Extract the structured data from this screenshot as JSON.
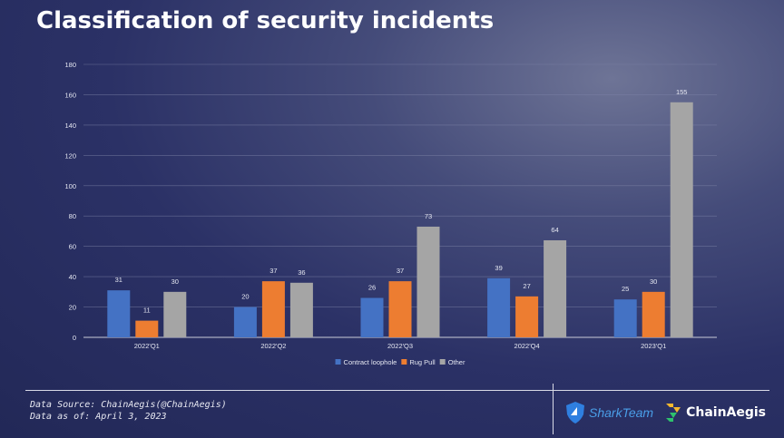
{
  "title": "Classification of security incidents",
  "source": {
    "line1": "Data Source: ChainAegis(@ChainAegis)",
    "line2": "Data as of: April 3, 2023"
  },
  "logos": {
    "shark": "SharkTeam",
    "chain": "ChainAegis"
  },
  "chart_data": {
    "type": "bar",
    "title": "Classification of security incidents",
    "categories": [
      "2022'Q1",
      "2022'Q2",
      "2022'Q3",
      "2022'Q4",
      "2023'Q1"
    ],
    "series": [
      {
        "name": "Contract loophole",
        "color": "#4472c4",
        "values": [
          31,
          20,
          26,
          39,
          25
        ]
      },
      {
        "name": "Rug Pull",
        "color": "#ed7d31",
        "values": [
          11,
          37,
          37,
          27,
          30
        ]
      },
      {
        "name": "Other",
        "color": "#a5a5a5",
        "values": [
          30,
          36,
          73,
          64,
          155
        ]
      }
    ],
    "ylim": [
      0,
      180
    ],
    "yticks": [
      0,
      20,
      40,
      60,
      80,
      100,
      120,
      140,
      160,
      180
    ],
    "grid": true,
    "legend": "bottom",
    "xlabel": "",
    "ylabel": ""
  }
}
